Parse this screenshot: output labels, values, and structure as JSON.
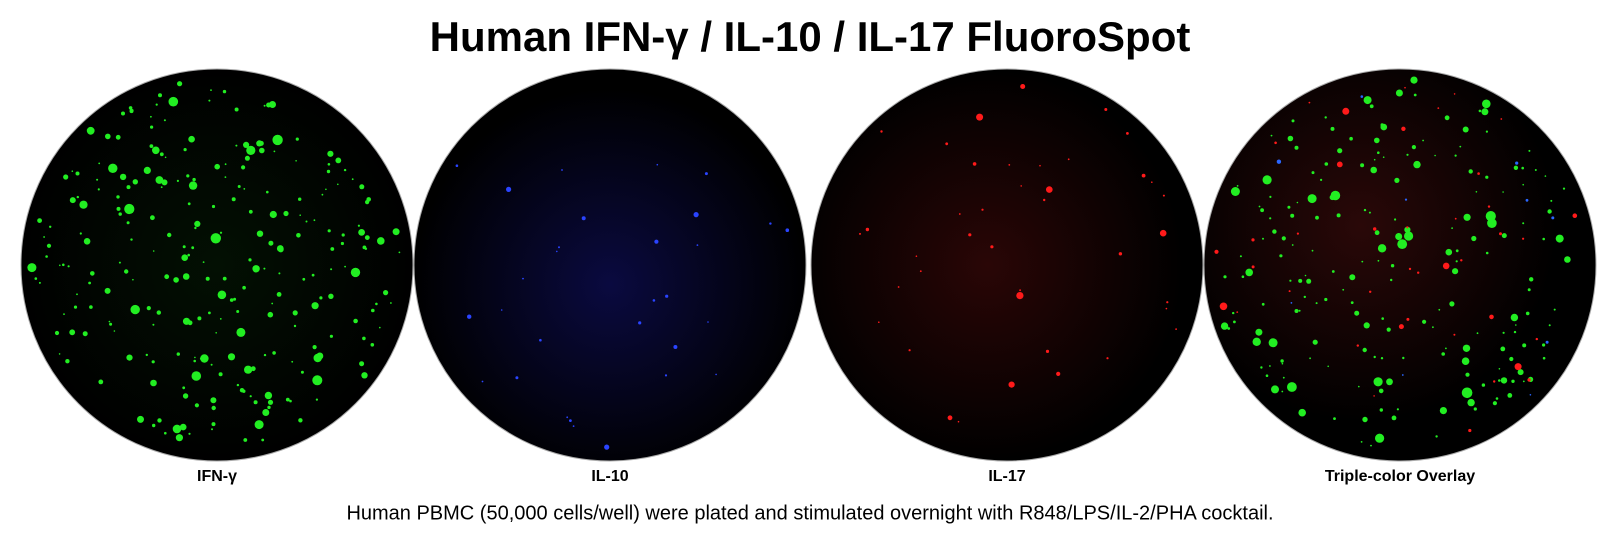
{
  "title": "Human IFN-γ / IL-10 / IL-17 FluoroSpot",
  "wells": [
    {
      "label": "IFN-γ"
    },
    {
      "label": "IL-10"
    },
    {
      "label": "IL-17"
    },
    {
      "label": "Triple-color Overlay"
    }
  ],
  "caption": "Human PBMC (50,000 cells/well) were plated and stimulated overnight with R848/LPS/IL-2/PHA cocktail."
}
